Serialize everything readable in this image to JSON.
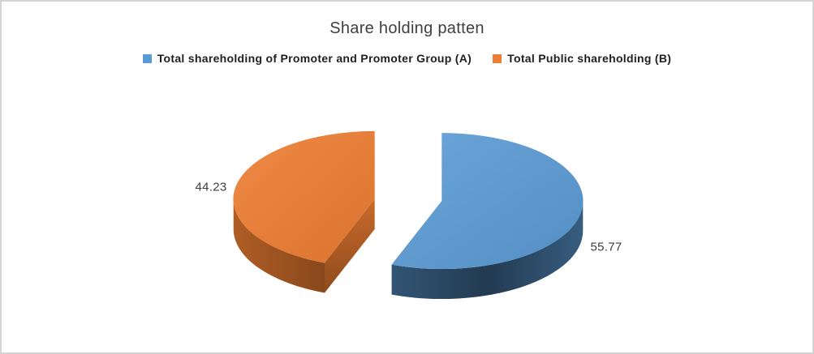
{
  "frame": {
    "background": "#ffffff",
    "border_color": "#d5d5d5"
  },
  "chart_data": {
    "type": "pie",
    "style": "3d-exploded",
    "title": "Share holding patten",
    "legend_position": "top",
    "start_angle_deg": 0,
    "direction": "clockwise",
    "total": 100,
    "slices": [
      {
        "key": "promoter-group",
        "label": "Total shareholding of Promoter and Promoter Group (A)",
        "value": 55.77,
        "data_label": "55.77",
        "color": "#5B9BD5"
      },
      {
        "key": "public",
        "label": "Total Public shareholding (B)",
        "value": 44.23,
        "data_label": "44.23",
        "color": "#ED7D31"
      }
    ]
  }
}
